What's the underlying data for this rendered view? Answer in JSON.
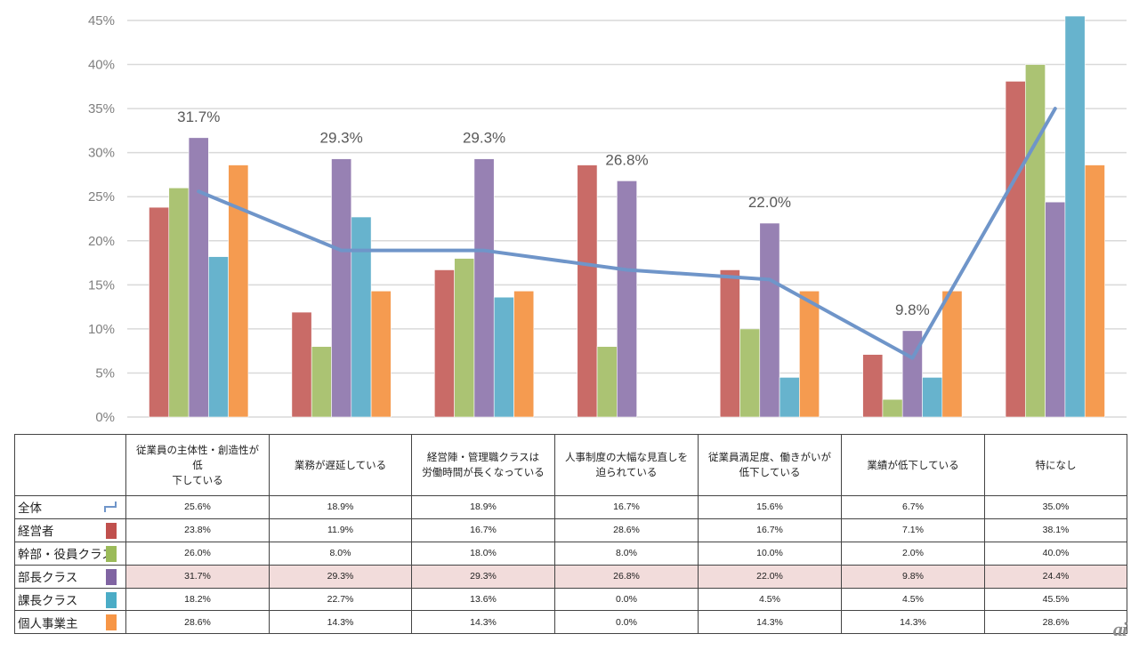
{
  "chart_data": {
    "type": "bar",
    "title": "",
    "xlabel": "",
    "ylabel": "",
    "ylim": [
      0,
      45
    ],
    "ytick_step": 5,
    "yticks": [
      "0%",
      "5%",
      "10%",
      "15%",
      "20%",
      "25%",
      "30%",
      "35%",
      "40%",
      "45%"
    ],
    "grid": true,
    "legend_placement": "table-below",
    "categories": [
      "従業員の主体性・創造性が低下している",
      "業務が遅延している",
      "経営陣・管理職クラスは労働時間が長くなっている",
      "人事制度の大幅な見直しを迫られている",
      "従業員満足度、働きがいが低下している",
      "業績が低下している",
      "特になし"
    ],
    "categories_display": [
      [
        "従業員の主体性・創造性が低",
        "下している"
      ],
      [
        "業務が遅延している"
      ],
      [
        "経営陣・管理職クラスは",
        "労働時間が長くなっている"
      ],
      [
        "人事制度の大幅な見直しを",
        "迫られている"
      ],
      [
        "従業員満足度、働きがいが",
        "低下している"
      ],
      [
        "業績が低下している"
      ],
      [
        "特になし"
      ]
    ],
    "line_series": {
      "name": "全体",
      "type": "line",
      "color": "#6f95c9",
      "values": [
        25.6,
        18.9,
        18.9,
        16.7,
        15.6,
        6.7,
        35.0
      ]
    },
    "series": [
      {
        "name": "経営者",
        "color": "#c96b67",
        "legend_color": "#c0504d",
        "values": [
          23.8,
          11.9,
          16.7,
          28.6,
          16.7,
          7.1,
          38.1
        ]
      },
      {
        "name": "幹部・役員クラス",
        "color": "#abc373",
        "legend_color": "#9bbb59",
        "values": [
          26.0,
          8.0,
          18.0,
          8.0,
          10.0,
          2.0,
          40.0
        ]
      },
      {
        "name": "部長クラス",
        "color": "#9781b3",
        "legend_color": "#8064a2",
        "values": [
          31.7,
          29.3,
          29.3,
          26.8,
          22.0,
          9.8,
          24.4
        ],
        "highlight": true
      },
      {
        "name": "課長クラス",
        "color": "#67b3cd",
        "legend_color": "#4bacc6",
        "values": [
          18.2,
          22.7,
          13.6,
          0.0,
          4.5,
          4.5,
          45.5
        ]
      },
      {
        "name": "個人事業主",
        "color": "#f59b50",
        "legend_color": "#f79646",
        "values": [
          28.6,
          14.3,
          14.3,
          0.0,
          14.3,
          14.3,
          28.6
        ]
      }
    ],
    "data_labels": {
      "series": "部長クラス",
      "labels": [
        "31.7%",
        "29.3%",
        "29.3%",
        "26.8%",
        "22.0%",
        "9.8%"
      ]
    }
  },
  "table": {
    "rows": [
      {
        "label": "全体",
        "legend": "line",
        "cells": [
          "25.6%",
          "18.9%",
          "18.9%",
          "16.7%",
          "15.6%",
          "6.7%",
          "35.0%"
        ]
      },
      {
        "label": "経営者",
        "legend": "swatch",
        "cells": [
          "23.8%",
          "11.9%",
          "16.7%",
          "28.6%",
          "16.7%",
          "7.1%",
          "38.1%"
        ]
      },
      {
        "label": "幹部・役員クラス",
        "legend": "swatch",
        "cells": [
          "26.0%",
          "8.0%",
          "18.0%",
          "8.0%",
          "10.0%",
          "2.0%",
          "40.0%"
        ]
      },
      {
        "label": "部長クラス",
        "legend": "swatch",
        "highlight": true,
        "cells": [
          "31.7%",
          "29.3%",
          "29.3%",
          "26.8%",
          "22.0%",
          "9.8%",
          "24.4%"
        ]
      },
      {
        "label": "課長クラス",
        "legend": "swatch",
        "cells": [
          "18.2%",
          "22.7%",
          "13.6%",
          "0.0%",
          "4.5%",
          "4.5%",
          "45.5%"
        ]
      },
      {
        "label": "個人事業主",
        "legend": "swatch",
        "cells": [
          "28.6%",
          "14.3%",
          "14.3%",
          "0.0%",
          "14.3%",
          "14.3%",
          "28.6%"
        ]
      }
    ],
    "highlight_color": "#f2dcdb"
  },
  "watermark": "ai"
}
